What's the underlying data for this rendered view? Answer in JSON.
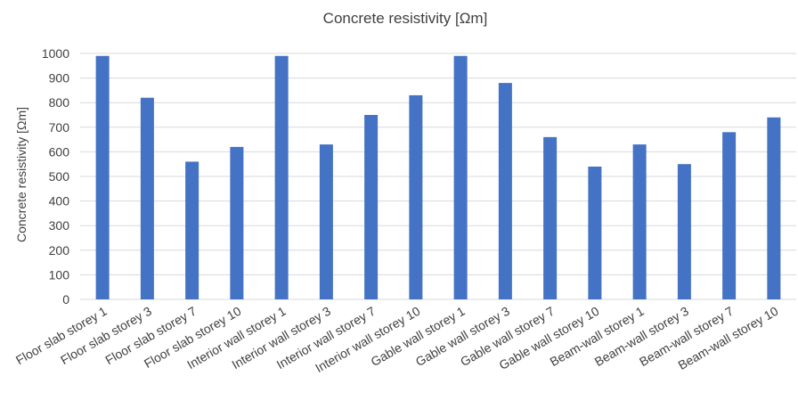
{
  "chart_data": {
    "type": "bar",
    "title": "Concrete resistivity [Ωm]",
    "xlabel": "",
    "ylabel": "Concrete resistivity [Ωm]",
    "ylim": [
      0,
      1000
    ],
    "yticks": [
      0,
      100,
      200,
      300,
      400,
      500,
      600,
      700,
      800,
      900,
      1000
    ],
    "grid": true,
    "legend": "none",
    "bar_color": "#4472c4",
    "categories": [
      "Floor slab storey 1",
      "Floor slab storey 3",
      "Floor slab storey 7",
      "Floor slab storey 10",
      "Interior wall storey 1",
      "Interior wall storey 3",
      "Interior wall storey 7",
      "Interior wall storey 10",
      "Gable wall storey 1",
      "Gable wall storey 3",
      "Gable wall storey 7",
      "Gable wall storey 10",
      "Beam-wall storey 1",
      "Beam-wall storey 3",
      "Beam-wall storey 7",
      "Beam-wall storey 10"
    ],
    "values": [
      990,
      820,
      560,
      620,
      990,
      630,
      750,
      830,
      990,
      880,
      660,
      540,
      630,
      550,
      680,
      740
    ]
  }
}
